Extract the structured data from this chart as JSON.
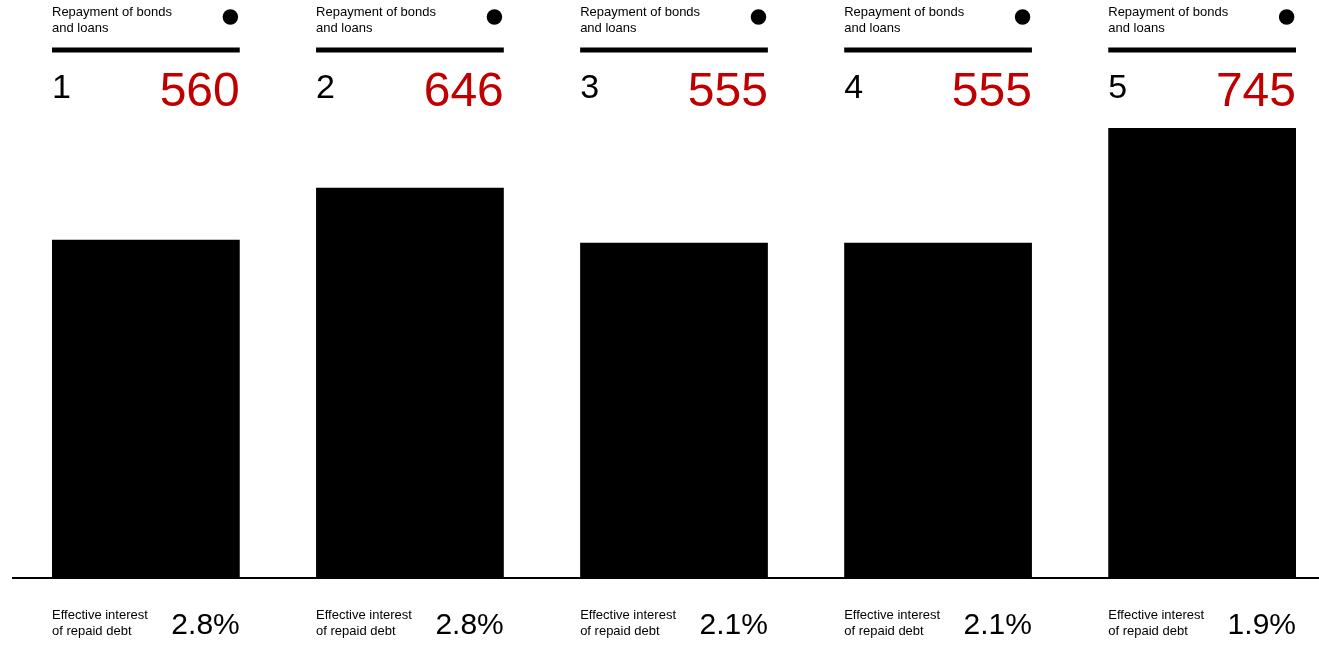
{
  "chart_data": {
    "type": "bar",
    "categories": [
      "1",
      "2",
      "3",
      "4",
      "5"
    ],
    "series": [
      {
        "name": "Repayment of bonds and loans",
        "color": "#000000",
        "values": [
          560,
          646,
          555,
          555,
          745
        ]
      }
    ],
    "data_labels": true,
    "annotations": [
      "Effective interest of repaid debt",
      "2.8%",
      "2.8%",
      "2.1%",
      "2.1%",
      "1.9%"
    ]
  }
}
